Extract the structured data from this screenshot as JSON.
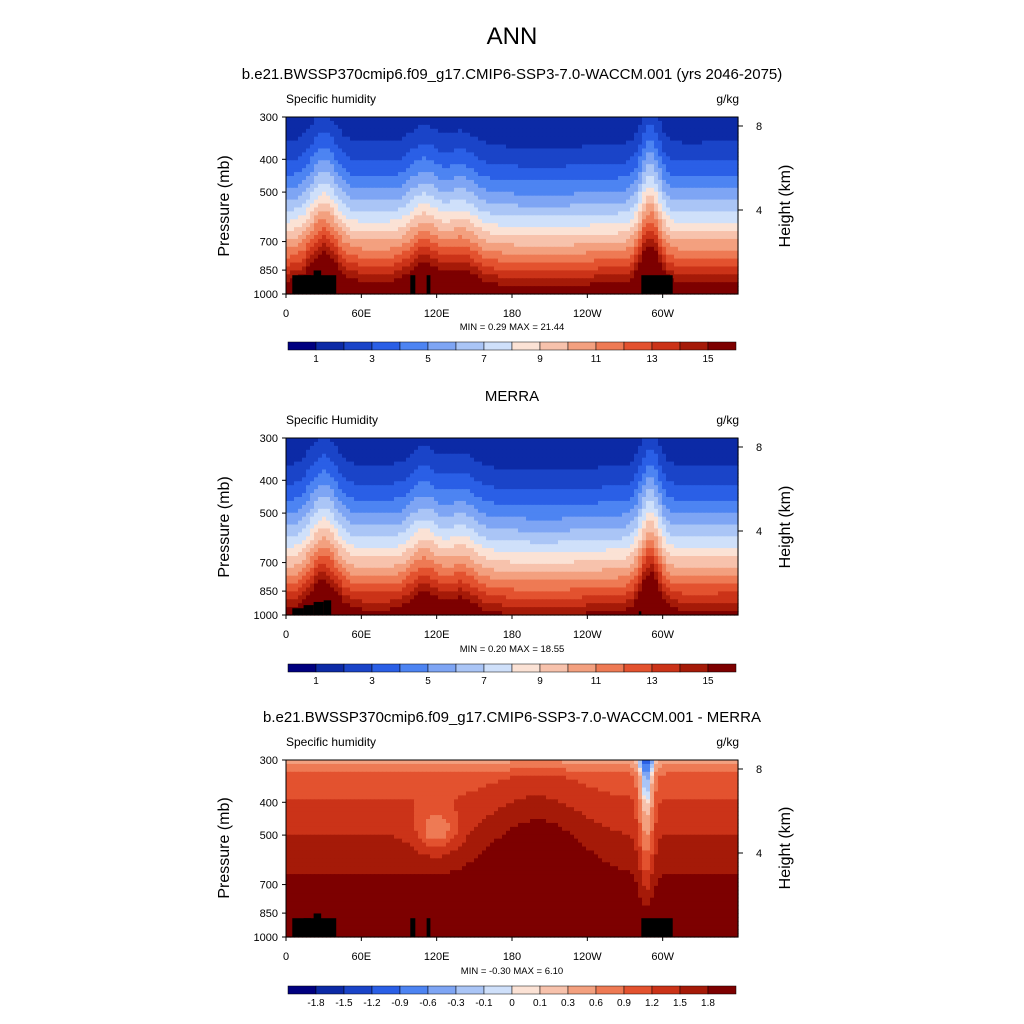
{
  "main_title": "ANN",
  "colors": {
    "abs_scale": [
      "#00007f",
      "#0c2aa6",
      "#1a44c8",
      "#2a5fe6",
      "#4d84f2",
      "#7ea5f4",
      "#aac5f6",
      "#cfe0fa",
      "#fbe2d5",
      "#f7c2ac",
      "#f3a07f",
      "#ee7a54",
      "#e3522f",
      "#cb3318",
      "#a51a08",
      "#7d0000"
    ],
    "diff_scale": [
      "#00007f",
      "#0c2aa6",
      "#1a44c8",
      "#2a5fe6",
      "#4d84f2",
      "#7ea5f4",
      "#aac5f6",
      "#cfe0fa",
      "#fbe2d5",
      "#f7c2ac",
      "#f3a07f",
      "#ee7a54",
      "#e3522f",
      "#cb3318",
      "#a51a08",
      "#7d0000"
    ],
    "terrain": "#000000"
  },
  "chart_data": [
    {
      "type": "heatmap",
      "title": "b.e21.BWSSP370cmip6.f09_g17.CMIP6-SSP3-7.0-WACCM.001 (yrs 2046-2075)",
      "left_label": "Specific humidity",
      "units": "g/kg",
      "ylabel": "Pressure (mb)",
      "ylabel_right": "Height (km)",
      "yticks": [
        "300",
        "400",
        "500",
        "700",
        "850",
        "1000"
      ],
      "yticks_right": [
        "8",
        "4"
      ],
      "xticks": [
        "0",
        "60E",
        "120E",
        "180",
        "120W",
        "60W"
      ],
      "stats": "MIN =   0.29  MAX =  21.44",
      "colorbar_labels": [
        "1",
        "3",
        "5",
        "7",
        "9",
        "11",
        "13",
        "15"
      ],
      "colorbar_levels": [
        0,
        1,
        2,
        3,
        4,
        5,
        6,
        7,
        8,
        9,
        10,
        11,
        12,
        13,
        14,
        15
      ],
      "field": "abs",
      "terrain": "model"
    },
    {
      "type": "heatmap",
      "title": "MERRA",
      "left_label": "Specific Humidity",
      "units": "g/kg",
      "ylabel": "Pressure (mb)",
      "ylabel_right": "Height (km)",
      "yticks": [
        "300",
        "400",
        "500",
        "700",
        "850",
        "1000"
      ],
      "yticks_right": [
        "8",
        "4"
      ],
      "xticks": [
        "0",
        "60E",
        "120E",
        "180",
        "120W",
        "60W"
      ],
      "stats": "MIN =   0.20  MAX =  18.55",
      "colorbar_labels": [
        "1",
        "3",
        "5",
        "7",
        "9",
        "11",
        "13",
        "15"
      ],
      "colorbar_levels": [
        0,
        1,
        2,
        3,
        4,
        5,
        6,
        7,
        8,
        9,
        10,
        11,
        12,
        13,
        14,
        15
      ],
      "field": "obs",
      "terrain": "obs"
    },
    {
      "type": "heatmap",
      "title": "b.e21.BWSSP370cmip6.f09_g17.CMIP6-SSP3-7.0-WACCM.001 - MERRA",
      "left_label": "Specific humidity",
      "units": "g/kg",
      "ylabel": "Pressure (mb)",
      "ylabel_right": "Height (km)",
      "yticks": [
        "300",
        "400",
        "500",
        "700",
        "850",
        "1000"
      ],
      "yticks_right": [
        "8",
        "4"
      ],
      "xticks": [
        "0",
        "60E",
        "120E",
        "180",
        "120W",
        "60W"
      ],
      "stats": "MIN =  -0.30  MAX =   6.10",
      "colorbar_labels": [
        "-1.8",
        "-1.5",
        "-1.2",
        "-0.9",
        "-0.6",
        "-0.3",
        "-0.1",
        "0",
        "0.1",
        "0.3",
        "0.6",
        "0.9",
        "1.2",
        "1.5",
        "1.8"
      ],
      "colorbar_levels": [
        -1.8,
        -1.5,
        -1.2,
        -0.9,
        -0.6,
        -0.3,
        -0.1,
        0,
        0.1,
        0.3,
        0.6,
        0.9,
        1.2,
        1.5,
        1.8
      ],
      "field": "diff",
      "terrain": "model"
    }
  ]
}
